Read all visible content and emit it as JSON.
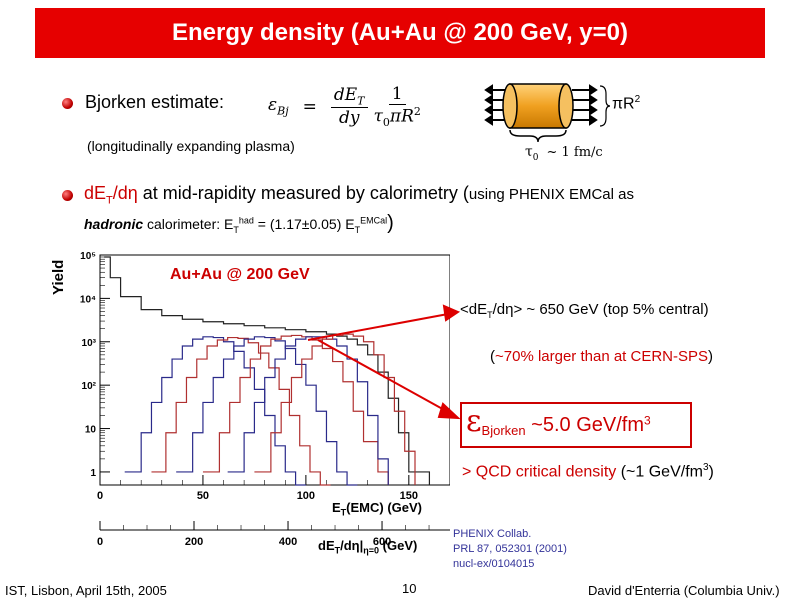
{
  "title": "Energy density (Au+Au @ 200 GeV, y=0)",
  "bullet1": {
    "label": "Bjorken estimate:",
    "eps": "ε",
    "eps_sub": "Bj",
    "eq": "=",
    "num1": "dE",
    "num1_sub": "T",
    "den1": "dy",
    "num2": "1",
    "den2": "τ",
    "den2_sub": "0",
    "den2_rest": "πR",
    "den2_sup": "2",
    "note": "(longitudinally expanding plasma)"
  },
  "cylinder": {
    "area_label": "πR",
    "area_sup": "2",
    "tau_label": "τ",
    "tau_sub": "0",
    "tau_value": "~ 1 fm/c"
  },
  "bullet2": {
    "part1": "dE",
    "part1_sub": "T",
    "part2": "/dη",
    "part3": " at mid-rapidity measured by calorimetry (",
    "part4": "using PHENIX EMCal as",
    "line2_italic": "hadronic",
    "line2_a": " calorimeter:  E",
    "line2_sub1": "T",
    "line2_sup1": "had",
    "line2_b": " = (1.17±0.05) E",
    "line2_sub2": "T",
    "line2_sup2": "EMCal",
    "line2_close": ")"
  },
  "annotations": {
    "mean": "<dE",
    "mean_sub": "T",
    "mean_rest": "/dη> ~ 650 GeV (top 5% central)",
    "sps_open": "(",
    "sps_red": "~70% larger than at CERN-SPS",
    "sps_close": ")",
    "eps_sym": "ε",
    "eps_sub": "Bjorken",
    "eps_val": " ~5.0 GeV/fm",
    "eps_sup": "3",
    "qcd_red": "> QCD critical density",
    "qcd_black": " (~1 GeV/fm",
    "qcd_sup": "3",
    "qcd_end": ")"
  },
  "reference": {
    "line1": "PHENIX Collab.",
    "line2": "PRL 87, 052301 (2001)",
    "line3": "nucl-ex/0104015"
  },
  "footer": {
    "left": "IST, Lisbon, April 15th, 2005",
    "center": "10",
    "right": "David d'Enterria (Columbia Univ.)"
  },
  "chart_data": {
    "type": "line",
    "title": "Au+Au @ 200 GeV",
    "ylabel": "Yield",
    "xlabel": "E",
    "xlabel_sub": "T",
    "xlabel_rest": "(EMC) (GeV)",
    "x2label": "dE",
    "x2label_sub": "T",
    "x2label_rest": "/dη|",
    "x2label_sub2": "η=0",
    "x2label_end": " (GeV)",
    "y_scale": "log",
    "ylim": [
      0.5,
      100000
    ],
    "xlim": [
      0,
      170
    ],
    "x_ticks": [
      0,
      50,
      100,
      150
    ],
    "y_ticks": [
      "1",
      "10",
      "10²",
      "10³",
      "10⁴",
      "10⁵"
    ],
    "x2_ticks": [
      0,
      200,
      400,
      600
    ],
    "x2_per_x1": 4.38,
    "colors": {
      "black": "#222222",
      "blue": "#2a2a8a",
      "red": "#b03030"
    },
    "series": [
      {
        "color": "black",
        "x": [
          2,
          5,
          10,
          20,
          30,
          40,
          50,
          60,
          70,
          80,
          90,
          100,
          110,
          115,
          120,
          125,
          130,
          135,
          140,
          145,
          150,
          160
        ],
        "y": [
          90000,
          30000,
          11000,
          5500,
          4000,
          3300,
          2900,
          2600,
          2350,
          2100,
          1900,
          1700,
          1500,
          1350,
          1150,
          850,
          500,
          200,
          50,
          8,
          1,
          0.5
        ]
      },
      {
        "color": "blue",
        "x": [
          12,
          20,
          25,
          30,
          35,
          40,
          45,
          50,
          55,
          60,
          65,
          70,
          75,
          80,
          85,
          90,
          95,
          100
        ],
        "y": [
          1,
          8,
          40,
          150,
          400,
          800,
          1150,
          1300,
          1250,
          1000,
          600,
          250,
          80,
          20,
          4,
          1,
          0.5,
          0.5
        ]
      },
      {
        "color": "red",
        "x": [
          25,
          32,
          37,
          42,
          47,
          52,
          57,
          62,
          67,
          72,
          77,
          82,
          87,
          92,
          97,
          102,
          107,
          112
        ],
        "y": [
          1,
          8,
          40,
          150,
          400,
          800,
          1100,
          1250,
          1200,
          950,
          550,
          250,
          80,
          20,
          4,
          1,
          0.5,
          0.5
        ]
      },
      {
        "color": "blue",
        "x": [
          37,
          45,
          50,
          55,
          60,
          65,
          70,
          75,
          80,
          85,
          90,
          95,
          100,
          105,
          110,
          115,
          120,
          125
        ],
        "y": [
          1,
          8,
          40,
          150,
          400,
          800,
          1150,
          1300,
          1250,
          1050,
          700,
          300,
          100,
          25,
          5,
          1,
          0.5,
          0.5
        ]
      },
      {
        "color": "red",
        "x": [
          50,
          58,
          63,
          68,
          73,
          78,
          83,
          88,
          93,
          98,
          103,
          108,
          113,
          118,
          123,
          128,
          135,
          140
        ],
        "y": [
          1,
          8,
          40,
          150,
          400,
          800,
          1150,
          1350,
          1400,
          1300,
          1100,
          700,
          350,
          120,
          25,
          5,
          1,
          0.5
        ]
      },
      {
        "color": "blue",
        "x": [
          62,
          70,
          75,
          80,
          85,
          90,
          95,
          100,
          105,
          110,
          115,
          120,
          125,
          130,
          135,
          140
        ],
        "y": [
          1,
          8,
          40,
          150,
          400,
          800,
          1150,
          1300,
          1300,
          1150,
          800,
          400,
          120,
          20,
          2,
          0.5
        ]
      },
      {
        "color": "red",
        "x": [
          75,
          83,
          88,
          93,
          98,
          103,
          108,
          113,
          118,
          123,
          128,
          133,
          138,
          143,
          148,
          153
        ],
        "y": [
          1,
          8,
          40,
          150,
          400,
          800,
          1150,
          1400,
          1500,
          1350,
          1000,
          500,
          150,
          25,
          3,
          0.5
        ]
      }
    ]
  }
}
